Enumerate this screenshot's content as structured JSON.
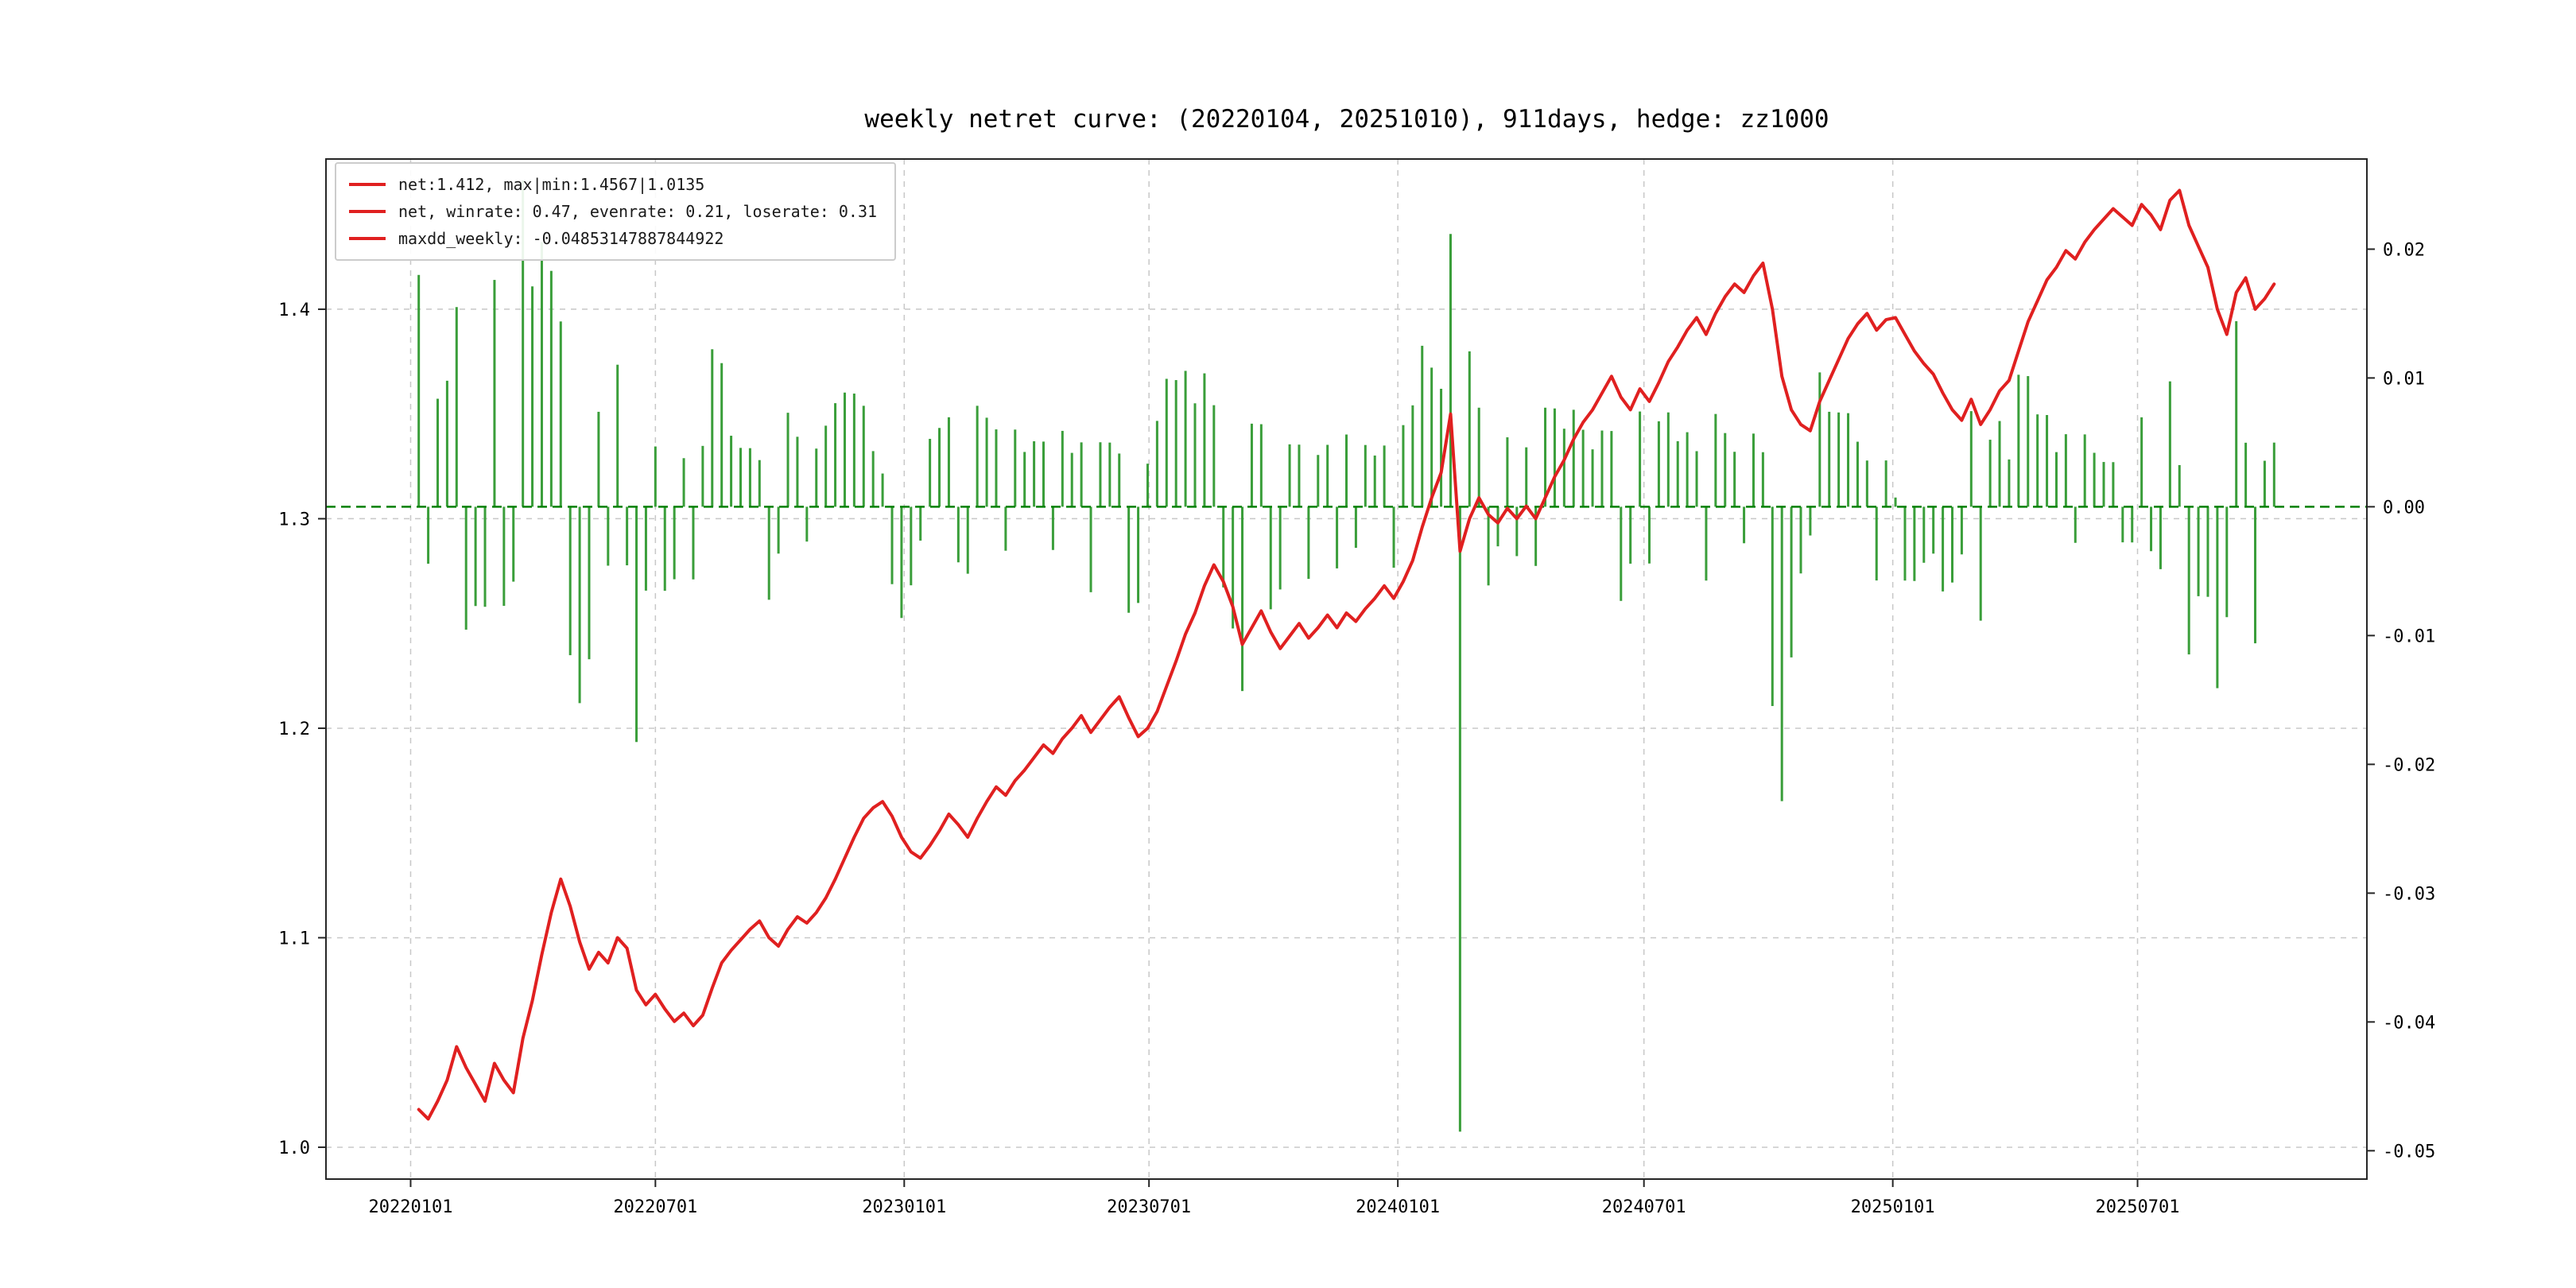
{
  "chart": {
    "title": "weekly netret curve: (20220104, 20251010), 911days, hedge: zz1000",
    "legend": [
      "net:1.412, max|min:1.4567|1.0135",
      "net, winrate: 0.47, evenrate: 0.21, loserate: 0.31",
      "maxdd_weekly: -0.04853147887844922"
    ],
    "colors": {
      "line": "#e02020",
      "bar": "#3a9e3a",
      "zero_line": "#008000",
      "grid": "#c8c8c8",
      "frame": "#262626",
      "text": "#000000"
    }
  },
  "chart_data": {
    "type": "line+bar",
    "title": "weekly netret curve: (20220104, 20251010), 911days, hedge: zz1000",
    "period_start": "20220104",
    "period_end": "20251010",
    "days": 911,
    "hedge": "zz1000",
    "stats": {
      "net_final": 1.412,
      "net_max": 1.4567,
      "net_min": 1.0135,
      "winrate": 0.47,
      "evenrate": 0.21,
      "loserate": 0.31,
      "maxdd_weekly": -0.04853147887844922
    },
    "start_date": "2022-01-07",
    "step_days": 7,
    "x_ticks": [
      "20220101",
      "20220701",
      "20230101",
      "20230701",
      "20240101",
      "20240701",
      "20250101",
      "20250701"
    ],
    "y_left_ticks": [
      "1.0",
      "1.1",
      "1.2",
      "1.3",
      "1.4"
    ],
    "y_right_ticks": [
      "-0.05",
      "-0.04",
      "-0.03",
      "-0.02",
      "-0.01",
      "0.00",
      "0.01",
      "0.02"
    ],
    "y_left_lim": [
      0.9848,
      1.4717
    ],
    "y_right_lim": [
      -0.0522,
      0.027
    ],
    "x_index_lim": [
      -9.8,
      205.8
    ],
    "bars_note": "green bars = weekly return: net[i]/net[i-1]-1 (first vs 1.0), plotted on right axis",
    "net": [
      1.018,
      1.0135,
      1.022,
      1.032,
      1.048,
      1.038,
      1.03,
      1.022,
      1.04,
      1.032,
      1.026,
      1.052,
      1.07,
      1.092,
      1.112,
      1.128,
      1.115,
      1.098,
      1.085,
      1.093,
      1.088,
      1.1,
      1.095,
      1.075,
      1.068,
      1.073,
      1.066,
      1.06,
      1.064,
      1.058,
      1.063,
      1.076,
      1.088,
      1.094,
      1.099,
      1.104,
      1.108,
      1.1,
      1.096,
      1.104,
      1.11,
      1.107,
      1.112,
      1.119,
      1.128,
      1.138,
      1.148,
      1.157,
      1.162,
      1.165,
      1.158,
      1.148,
      1.141,
      1.138,
      1.144,
      1.151,
      1.159,
      1.154,
      1.148,
      1.157,
      1.165,
      1.172,
      1.168,
      1.175,
      1.18,
      1.186,
      1.192,
      1.188,
      1.195,
      1.2,
      1.206,
      1.198,
      1.204,
      1.21,
      1.215,
      1.205,
      1.196,
      1.2,
      1.208,
      1.22,
      1.232,
      1.245,
      1.255,
      1.268,
      1.278,
      1.27,
      1.258,
      1.24,
      1.248,
      1.256,
      1.246,
      1.238,
      1.244,
      1.25,
      1.243,
      1.248,
      1.254,
      1.248,
      1.255,
      1.251,
      1.257,
      1.262,
      1.268,
      1.262,
      1.27,
      1.28,
      1.296,
      1.31,
      1.322,
      1.35,
      1.2845,
      1.3,
      1.31,
      1.302,
      1.298,
      1.305,
      1.3,
      1.306,
      1.3,
      1.31,
      1.32,
      1.328,
      1.338,
      1.346,
      1.352,
      1.36,
      1.368,
      1.358,
      1.352,
      1.362,
      1.356,
      1.365,
      1.375,
      1.382,
      1.39,
      1.396,
      1.388,
      1.398,
      1.406,
      1.412,
      1.408,
      1.416,
      1.422,
      1.4,
      1.368,
      1.352,
      1.345,
      1.342,
      1.356,
      1.366,
      1.376,
      1.386,
      1.393,
      1.398,
      1.39,
      1.395,
      1.396,
      1.388,
      1.38,
      1.374,
      1.369,
      1.36,
      1.352,
      1.347,
      1.357,
      1.345,
      1.352,
      1.361,
      1.366,
      1.38,
      1.394,
      1.404,
      1.414,
      1.42,
      1.428,
      1.424,
      1.432,
      1.438,
      1.443,
      1.448,
      1.444,
      1.44,
      1.45,
      1.445,
      1.438,
      1.452,
      1.4567,
      1.44,
      1.43,
      1.42,
      1.4,
      1.388,
      1.408,
      1.415,
      1.4,
      1.405,
      1.412
    ]
  }
}
